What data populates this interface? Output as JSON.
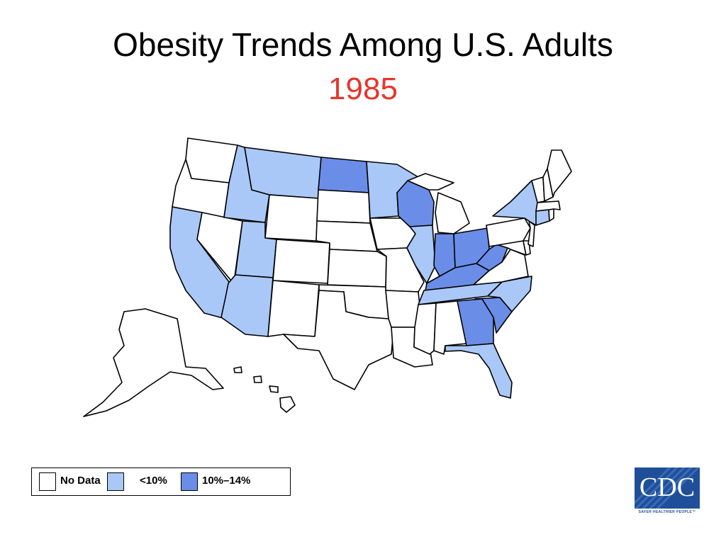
{
  "title": "Obesity Trends Among U.S. Adults",
  "year": "1985",
  "colors": {
    "no_data": "#ffffff",
    "lt10": "#aac8f7",
    "10to14": "#6a8ee8",
    "title_year": "#e8352a",
    "cdc_blue": "#1f4f99"
  },
  "legend": [
    {
      "label": "No Data",
      "category": "no_data"
    },
    {
      "label": "<10%",
      "category": "lt10"
    },
    {
      "label": "10%–14%",
      "category": "10to14"
    }
  ],
  "states": {
    "WA": "no_data",
    "OR": "no_data",
    "CA": "lt10",
    "NV": "no_data",
    "ID": "lt10",
    "MT": "lt10",
    "WY": "no_data",
    "UT": "lt10",
    "AZ": "lt10",
    "CO": "no_data",
    "NM": "no_data",
    "ND": "10to14",
    "SD": "no_data",
    "NE": "no_data",
    "KS": "no_data",
    "OK": "no_data",
    "TX": "no_data",
    "MN": "lt10",
    "IA": "no_data",
    "MO": "no_data",
    "AR": "no_data",
    "LA": "no_data",
    "WI": "10to14",
    "IL": "lt10",
    "MI": "no_data",
    "IN": "10to14",
    "OH": "10to14",
    "KY": "10to14",
    "TN": "lt10",
    "MS": "no_data",
    "AL": "no_data",
    "GA": "10to14",
    "FL": "lt10",
    "SC": "10to14",
    "NC": "lt10",
    "VA": "no_data",
    "WV": "10to14",
    "MD": "no_data",
    "DE": "no_data",
    "NJ": "no_data",
    "PA": "no_data",
    "NY": "lt10",
    "CT": "lt10",
    "RI": "no_data",
    "MA": "no_data",
    "VT": "no_data",
    "NH": "no_data",
    "ME": "no_data",
    "AK": "no_data",
    "HI": "no_data"
  },
  "logo": {
    "text": "CDC",
    "tagline": "SAFER·HEALTHIER·PEOPLE™"
  }
}
